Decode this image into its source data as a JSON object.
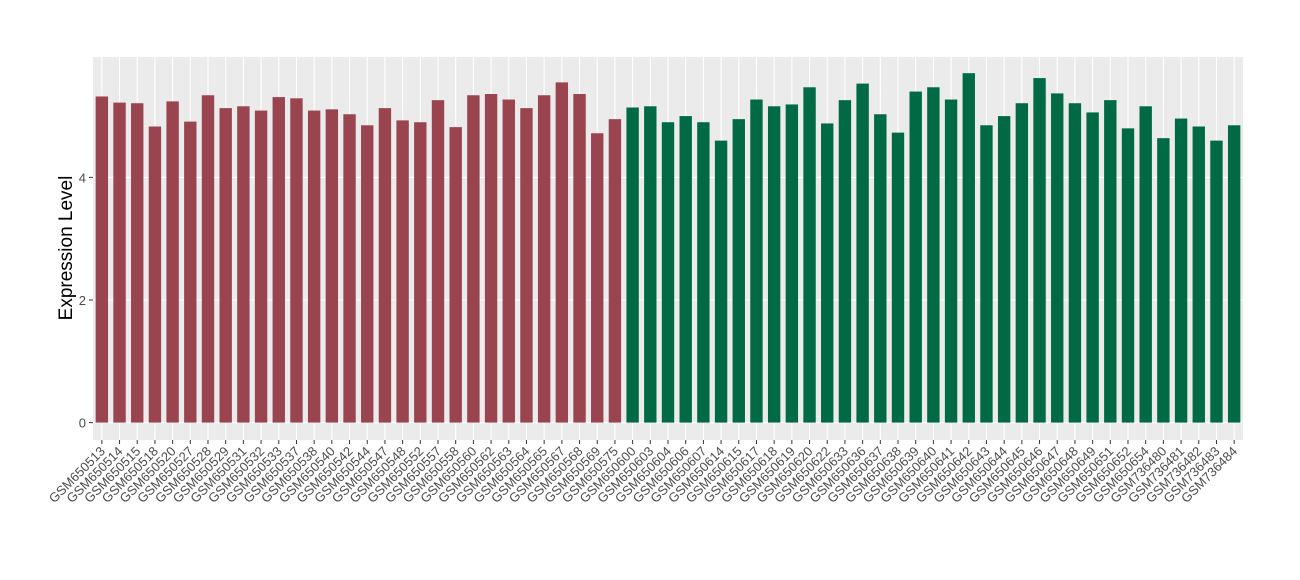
{
  "chart_data": {
    "type": "bar",
    "y_label": "Expression Level",
    "categories": [
      "GSM650513",
      "GSM650514",
      "GSM650515",
      "GSM650518",
      "GSM650520",
      "GSM650527",
      "GSM650528",
      "GSM650529",
      "GSM650531",
      "GSM650532",
      "GSM650533",
      "GSM650537",
      "GSM650538",
      "GSM650540",
      "GSM650542",
      "GSM650544",
      "GSM650547",
      "GSM650548",
      "GSM650552",
      "GSM650557",
      "GSM650558",
      "GSM650560",
      "GSM650562",
      "GSM650563",
      "GSM650564",
      "GSM650565",
      "GSM650567",
      "GSM650568",
      "GSM650569",
      "GSM650575",
      "GSM650600",
      "GSM650603",
      "GSM650604",
      "GSM650606",
      "GSM650607",
      "GSM650614",
      "GSM650615",
      "GSM650617",
      "GSM650618",
      "GSM650619",
      "GSM650620",
      "GSM650622",
      "GSM650633",
      "GSM650636",
      "GSM650637",
      "GSM650638",
      "GSM650639",
      "GSM650640",
      "GSM650641",
      "GSM650642",
      "GSM650643",
      "GSM650644",
      "GSM650645",
      "GSM650646",
      "GSM650647",
      "GSM650648",
      "GSM650649",
      "GSM650651",
      "GSM650652",
      "GSM650654",
      "GSM736480",
      "GSM736481",
      "GSM736482",
      "GSM736483",
      "GSM736484"
    ],
    "values": [
      5.32,
      5.22,
      5.21,
      4.83,
      5.24,
      4.91,
      5.34,
      5.13,
      5.16,
      5.09,
      5.31,
      5.29,
      5.09,
      5.11,
      5.03,
      4.85,
      5.13,
      4.93,
      4.9,
      5.26,
      4.82,
      5.34,
      5.36,
      5.27,
      5.13,
      5.34,
      5.55,
      5.36,
      4.72,
      4.95,
      5.14,
      5.16,
      4.9,
      5.0,
      4.9,
      4.6,
      4.95,
      5.27,
      5.16,
      5.19,
      5.47,
      4.88,
      5.26,
      5.53,
      5.03,
      4.73,
      5.4,
      5.47,
      5.27,
      5.7,
      4.85,
      5.0,
      5.21,
      5.62,
      5.37,
      5.21,
      5.06,
      5.26,
      4.8,
      5.16,
      4.64,
      4.96,
      4.83,
      4.6,
      4.85
    ],
    "colors": [
      "#9a4450",
      "#9a4450",
      "#9a4450",
      "#9a4450",
      "#9a4450",
      "#9a4450",
      "#9a4450",
      "#9a4450",
      "#9a4450",
      "#9a4450",
      "#9a4450",
      "#9a4450",
      "#9a4450",
      "#9a4450",
      "#9a4450",
      "#9a4450",
      "#9a4450",
      "#9a4450",
      "#9a4450",
      "#9a4450",
      "#9a4450",
      "#9a4450",
      "#9a4450",
      "#9a4450",
      "#9a4450",
      "#9a4450",
      "#9a4450",
      "#9a4450",
      "#9a4450",
      "#9a4450",
      "#006a44",
      "#006a44",
      "#006a44",
      "#006a44",
      "#006a44",
      "#006a44",
      "#006a44",
      "#006a44",
      "#006a44",
      "#006a44",
      "#006a44",
      "#006a44",
      "#006a44",
      "#006a44",
      "#006a44",
      "#006a44",
      "#006a44",
      "#006a44",
      "#006a44",
      "#006a44",
      "#006a44",
      "#006a44",
      "#006a44",
      "#006a44",
      "#006a44",
      "#006a44",
      "#006a44",
      "#006a44",
      "#006a44",
      "#006a44",
      "#006a44",
      "#006a44",
      "#006a44",
      "#006a44",
      "#006a44"
    ],
    "ylim": [
      -0.284,
      5.964
    ],
    "yticks": [
      0,
      2,
      4
    ],
    "grid": true
  }
}
